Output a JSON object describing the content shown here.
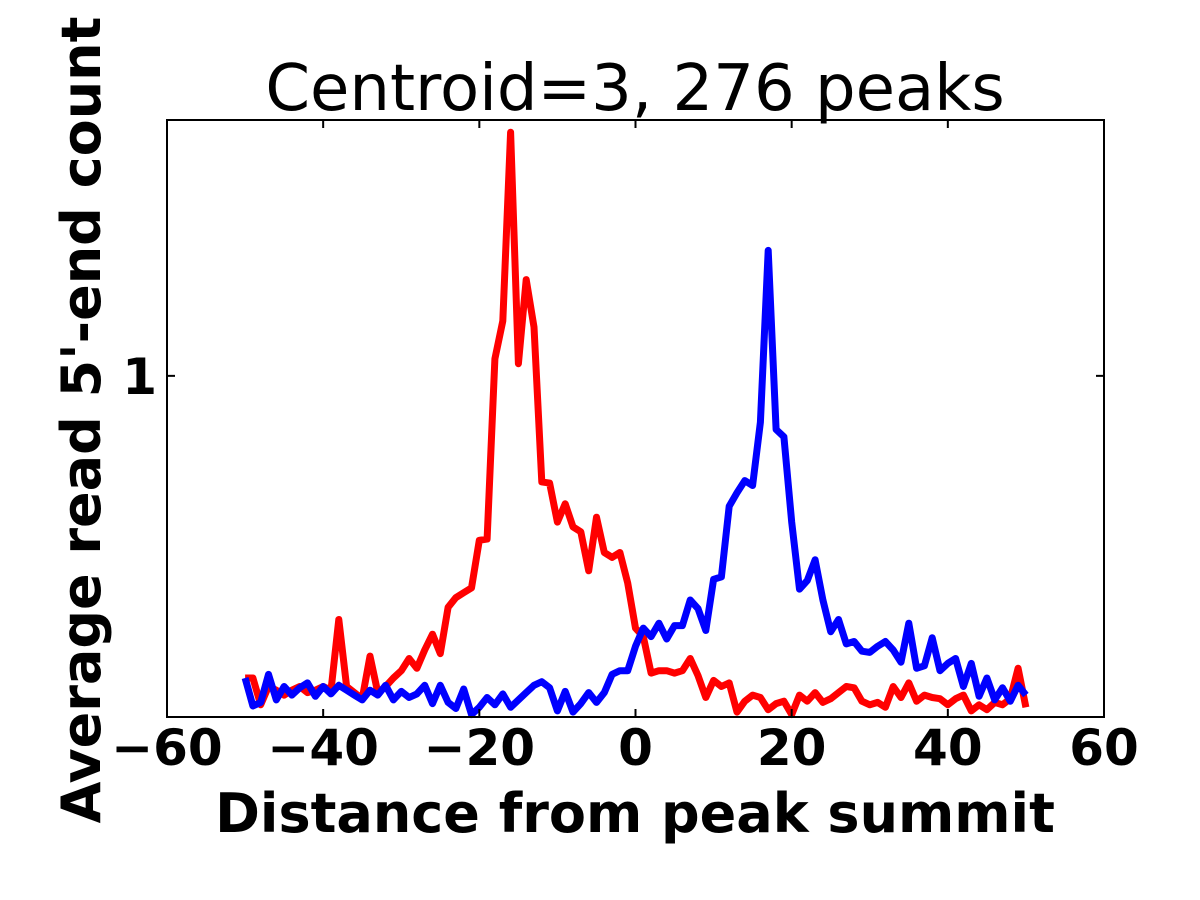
{
  "chart_data": {
    "type": "line",
    "title": "Centroid=3, 276 peaks",
    "xlabel": "Distance from peak summit",
    "ylabel": "Average read 5'-end count",
    "xlim": [
      -60,
      60
    ],
    "ylim": [
      0.72,
      1.21
    ],
    "xticks": [
      -60,
      -40,
      -20,
      0,
      20,
      40,
      60
    ],
    "xtick_labels": [
      "−60",
      "−40",
      "−20",
      "0",
      "20",
      "40",
      "60"
    ],
    "yticks": [
      1
    ],
    "ytick_labels": [
      "1"
    ],
    "grid": false,
    "legend": "none",
    "x": [
      -50,
      -49,
      -48,
      -47,
      -46,
      -45,
      -44,
      -43,
      -42,
      -41,
      -40,
      -39,
      -38,
      -37,
      -36,
      -35,
      -34,
      -33,
      -32,
      -31,
      -30,
      -29,
      -28,
      -27,
      -26,
      -25,
      -24,
      -23,
      -22,
      -21,
      -20,
      -19,
      -18,
      -17,
      -16,
      -15,
      -14,
      -13,
      -12,
      -11,
      -10,
      -9,
      -8,
      -7,
      -6,
      -5,
      -4,
      -3,
      -2,
      -1,
      0,
      1,
      2,
      3,
      4,
      5,
      6,
      7,
      8,
      9,
      10,
      11,
      12,
      13,
      14,
      15,
      16,
      17,
      18,
      19,
      20,
      21,
      22,
      23,
      24,
      25,
      26,
      27,
      28,
      29,
      30,
      31,
      32,
      33,
      34,
      35,
      36,
      37,
      38,
      39,
      40,
      41,
      42,
      43,
      44,
      45,
      46,
      47,
      48,
      49,
      50
    ],
    "series": [
      {
        "color": "#ff0000",
        "values": [
          0.752,
          0.752,
          0.73,
          0.745,
          0.742,
          0.738,
          0.742,
          0.745,
          0.74,
          0.742,
          0.745,
          0.742,
          0.8,
          0.745,
          0.74,
          0.735,
          0.77,
          0.74,
          0.745,
          0.752,
          0.758,
          0.768,
          0.76,
          0.775,
          0.788,
          0.772,
          0.81,
          0.818,
          0.822,
          0.826,
          0.865,
          0.866,
          1.014,
          1.045,
          1.2,
          1.01,
          1.079,
          1.04,
          0.913,
          0.912,
          0.88,
          0.895,
          0.876,
          0.872,
          0.84,
          0.884,
          0.855,
          0.851,
          0.855,
          0.83,
          0.793,
          0.786,
          0.756,
          0.758,
          0.758,
          0.756,
          0.758,
          0.768,
          0.754,
          0.736,
          0.75,
          0.745,
          0.748,
          0.724,
          0.733,
          0.738,
          0.736,
          0.726,
          0.731,
          0.733,
          0.722,
          0.738,
          0.733,
          0.74,
          0.732,
          0.735,
          0.74,
          0.745,
          0.744,
          0.733,
          0.73,
          0.732,
          0.728,
          0.745,
          0.736,
          0.748,
          0.733,
          0.738,
          0.736,
          0.735,
          0.73,
          0.735,
          0.738,
          0.725,
          0.73,
          0.726,
          0.732,
          0.73,
          0.735,
          0.76,
          0.728
        ]
      },
      {
        "color": "#0000ff",
        "values": [
          0.752,
          0.729,
          0.732,
          0.755,
          0.734,
          0.745,
          0.738,
          0.744,
          0.748,
          0.737,
          0.745,
          0.739,
          0.746,
          0.742,
          0.738,
          0.734,
          0.742,
          0.738,
          0.746,
          0.734,
          0.741,
          0.736,
          0.739,
          0.746,
          0.731,
          0.746,
          0.732,
          0.727,
          0.743,
          0.722,
          0.728,
          0.736,
          0.73,
          0.739,
          0.728,
          0.734,
          0.74,
          0.746,
          0.749,
          0.744,
          0.725,
          0.741,
          0.724,
          0.731,
          0.74,
          0.732,
          0.74,
          0.755,
          0.758,
          0.758,
          0.778,
          0.793,
          0.786,
          0.797,
          0.784,
          0.795,
          0.795,
          0.816,
          0.809,
          0.791,
          0.833,
          0.835,
          0.893,
          0.904,
          0.914,
          0.91,
          0.962,
          1.103,
          0.956,
          0.95,
          0.88,
          0.825,
          0.832,
          0.849,
          0.816,
          0.79,
          0.8,
          0.78,
          0.782,
          0.774,
          0.773,
          0.778,
          0.782,
          0.775,
          0.765,
          0.797,
          0.76,
          0.762,
          0.785,
          0.758,
          0.764,
          0.768,
          0.745,
          0.764,
          0.737,
          0.752,
          0.734,
          0.744,
          0.733,
          0.746,
          0.738
        ]
      }
    ]
  }
}
